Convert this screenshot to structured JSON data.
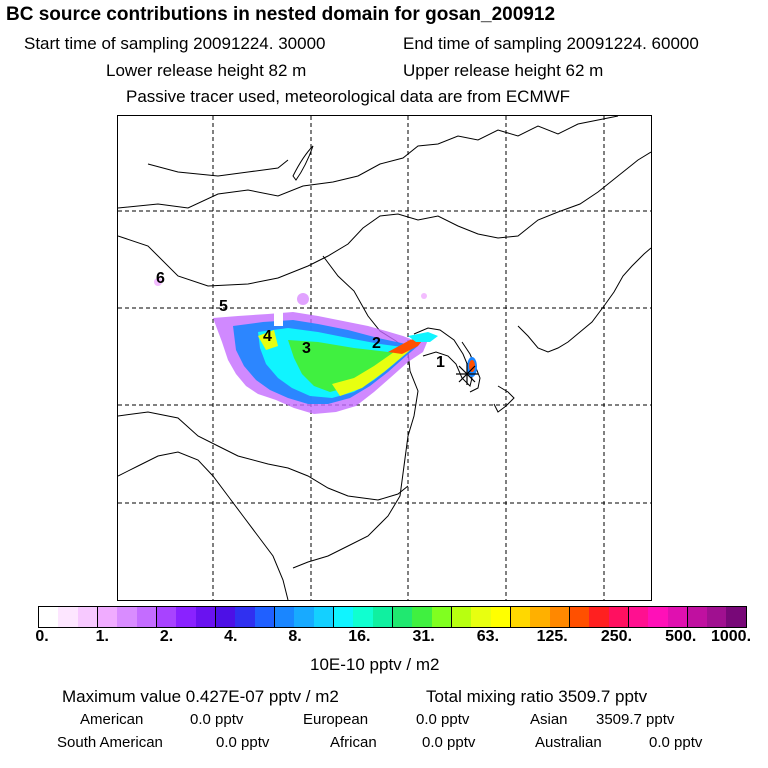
{
  "header": {
    "title": "BC  source contributions in nested domain for gosan_200912",
    "start_label": "Start time of sampling 20091224. 30000",
    "end_label": "End time of sampling 20091224. 60000",
    "lower_label": "Lower release height   82 m",
    "upper_label": "Upper release height   62 m",
    "tracer_note": "Passive tracer used, meteorological data are from ECMWF"
  },
  "map": {
    "region_labels": [
      "1",
      "2",
      "3",
      "4",
      "5",
      "6"
    ],
    "grid": "dashed lat/lon lines"
  },
  "colorbar": {
    "colors": [
      "#ffffff",
      "#fde6ff",
      "#f7c9ff",
      "#f0acff",
      "#d98cff",
      "#c46cff",
      "#a843ff",
      "#8a22ff",
      "#6a12f0",
      "#4d10e6",
      "#3030f0",
      "#2060ff",
      "#1a86ff",
      "#18aaff",
      "#14d0ff",
      "#10f4ff",
      "#10ffd0",
      "#10f0a0",
      "#20e870",
      "#40f040",
      "#80ff20",
      "#b8ff10",
      "#e8ff10",
      "#ffff00",
      "#ffd800",
      "#ffb000",
      "#ff8800",
      "#ff5000",
      "#ff2020",
      "#ff1060",
      "#ff1090",
      "#ff10b8",
      "#e010b0",
      "#c010a0",
      "#a01090",
      "#780878"
    ],
    "tick_labels": [
      "0.",
      "1.",
      "2.",
      "4.",
      "8.",
      "16.",
      "31.",
      "63.",
      "125.",
      "250.",
      "500.",
      "1000."
    ],
    "unit": "10E-10 pptv / m2"
  },
  "stats": {
    "max_label": "Maximum value  0.427E-07 pptv / m2",
    "total_label": "Total mixing ratio     3509.7 pptv",
    "american_label": "American",
    "american_value": "0.0 pptv",
    "european_label": "European",
    "european_value": "0.0 pptv",
    "asian_label": "Asian",
    "asian_value": "3509.7 pptv",
    "south_american_label": "South American",
    "south_american_value": "0.0 pptv",
    "african_label": "African",
    "african_value": "0.0 pptv",
    "australian_label": "Australian",
    "australian_value": "0.0 pptv"
  }
}
